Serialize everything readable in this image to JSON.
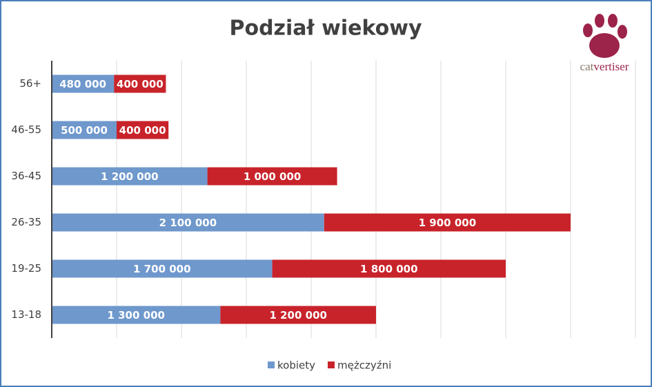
{
  "chart_data": {
    "type": "stacked-barh",
    "title": "Podział wiekowy",
    "categories": [
      "56+",
      "46-55",
      "36-45",
      "26-35",
      "19-25",
      "13-18"
    ],
    "series": [
      {
        "name": "kobiety",
        "color": "#6f98cc",
        "values": [
          480000,
          500000,
          1200000,
          2100000,
          1700000,
          1300000
        ],
        "value_labels": [
          "480 000",
          "500 000",
          "1 200 000",
          "2 100 000",
          "1 700 000",
          "1 300 000"
        ]
      },
      {
        "name": "mężczyźni",
        "color": "#c8232a",
        "values": [
          400000,
          400000,
          1000000,
          1900000,
          1800000,
          1200000
        ],
        "value_labels": [
          "400 000",
          "400 000",
          "1 000 000",
          "1 900 000",
          "1 800 000",
          "1 200 000"
        ]
      }
    ],
    "xlim": [
      0,
      4500000
    ],
    "xticks": [
      0,
      500000,
      1000000,
      1500000,
      2000000,
      2500000,
      3000000,
      3500000,
      4000000,
      4500000
    ],
    "grid": true,
    "legend": "bottom"
  },
  "logo": {
    "text": [
      "cat",
      "vertiser"
    ]
  }
}
